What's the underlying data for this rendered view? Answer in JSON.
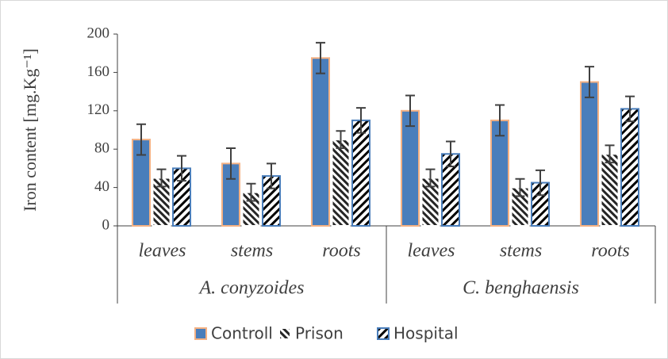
{
  "chart_data": {
    "type": "bar",
    "y_label": "Iron content [mg.Kg⁻¹]",
    "categories": [
      "leaves",
      "stems",
      "roots",
      "leaves",
      "stems",
      "roots"
    ],
    "groups": [
      {
        "name": "A. conyzoides",
        "size": 3
      },
      {
        "name": "C. benghaensis",
        "size": 3
      }
    ],
    "series": [
      {
        "name": "Controll",
        "color": "#4a7ebb",
        "edge": "#f4b183",
        "pattern": "solid",
        "values": [
          90,
          65,
          175,
          120,
          110,
          150
        ],
        "errors": [
          16,
          16,
          16,
          16,
          16,
          16
        ]
      },
      {
        "name": "Prison",
        "color": "#262626",
        "edge": "#ffffff",
        "pattern": "back-hatch",
        "values": [
          50,
          35,
          90,
          50,
          40,
          75
        ],
        "errors": [
          9,
          9,
          9,
          9,
          9,
          9
        ]
      },
      {
        "name": "Hospital",
        "color": "#000000",
        "edge": "#4a7ebb",
        "pattern": "fwd-hatch",
        "values": [
          60,
          52,
          110,
          75,
          45,
          122
        ],
        "errors": [
          13,
          13,
          13,
          13,
          13,
          13
        ]
      }
    ],
    "ylim": [
      0,
      200
    ],
    "yticks": [
      0,
      40,
      80,
      120,
      160,
      200
    ],
    "grid": false,
    "legend": "bottom"
  }
}
